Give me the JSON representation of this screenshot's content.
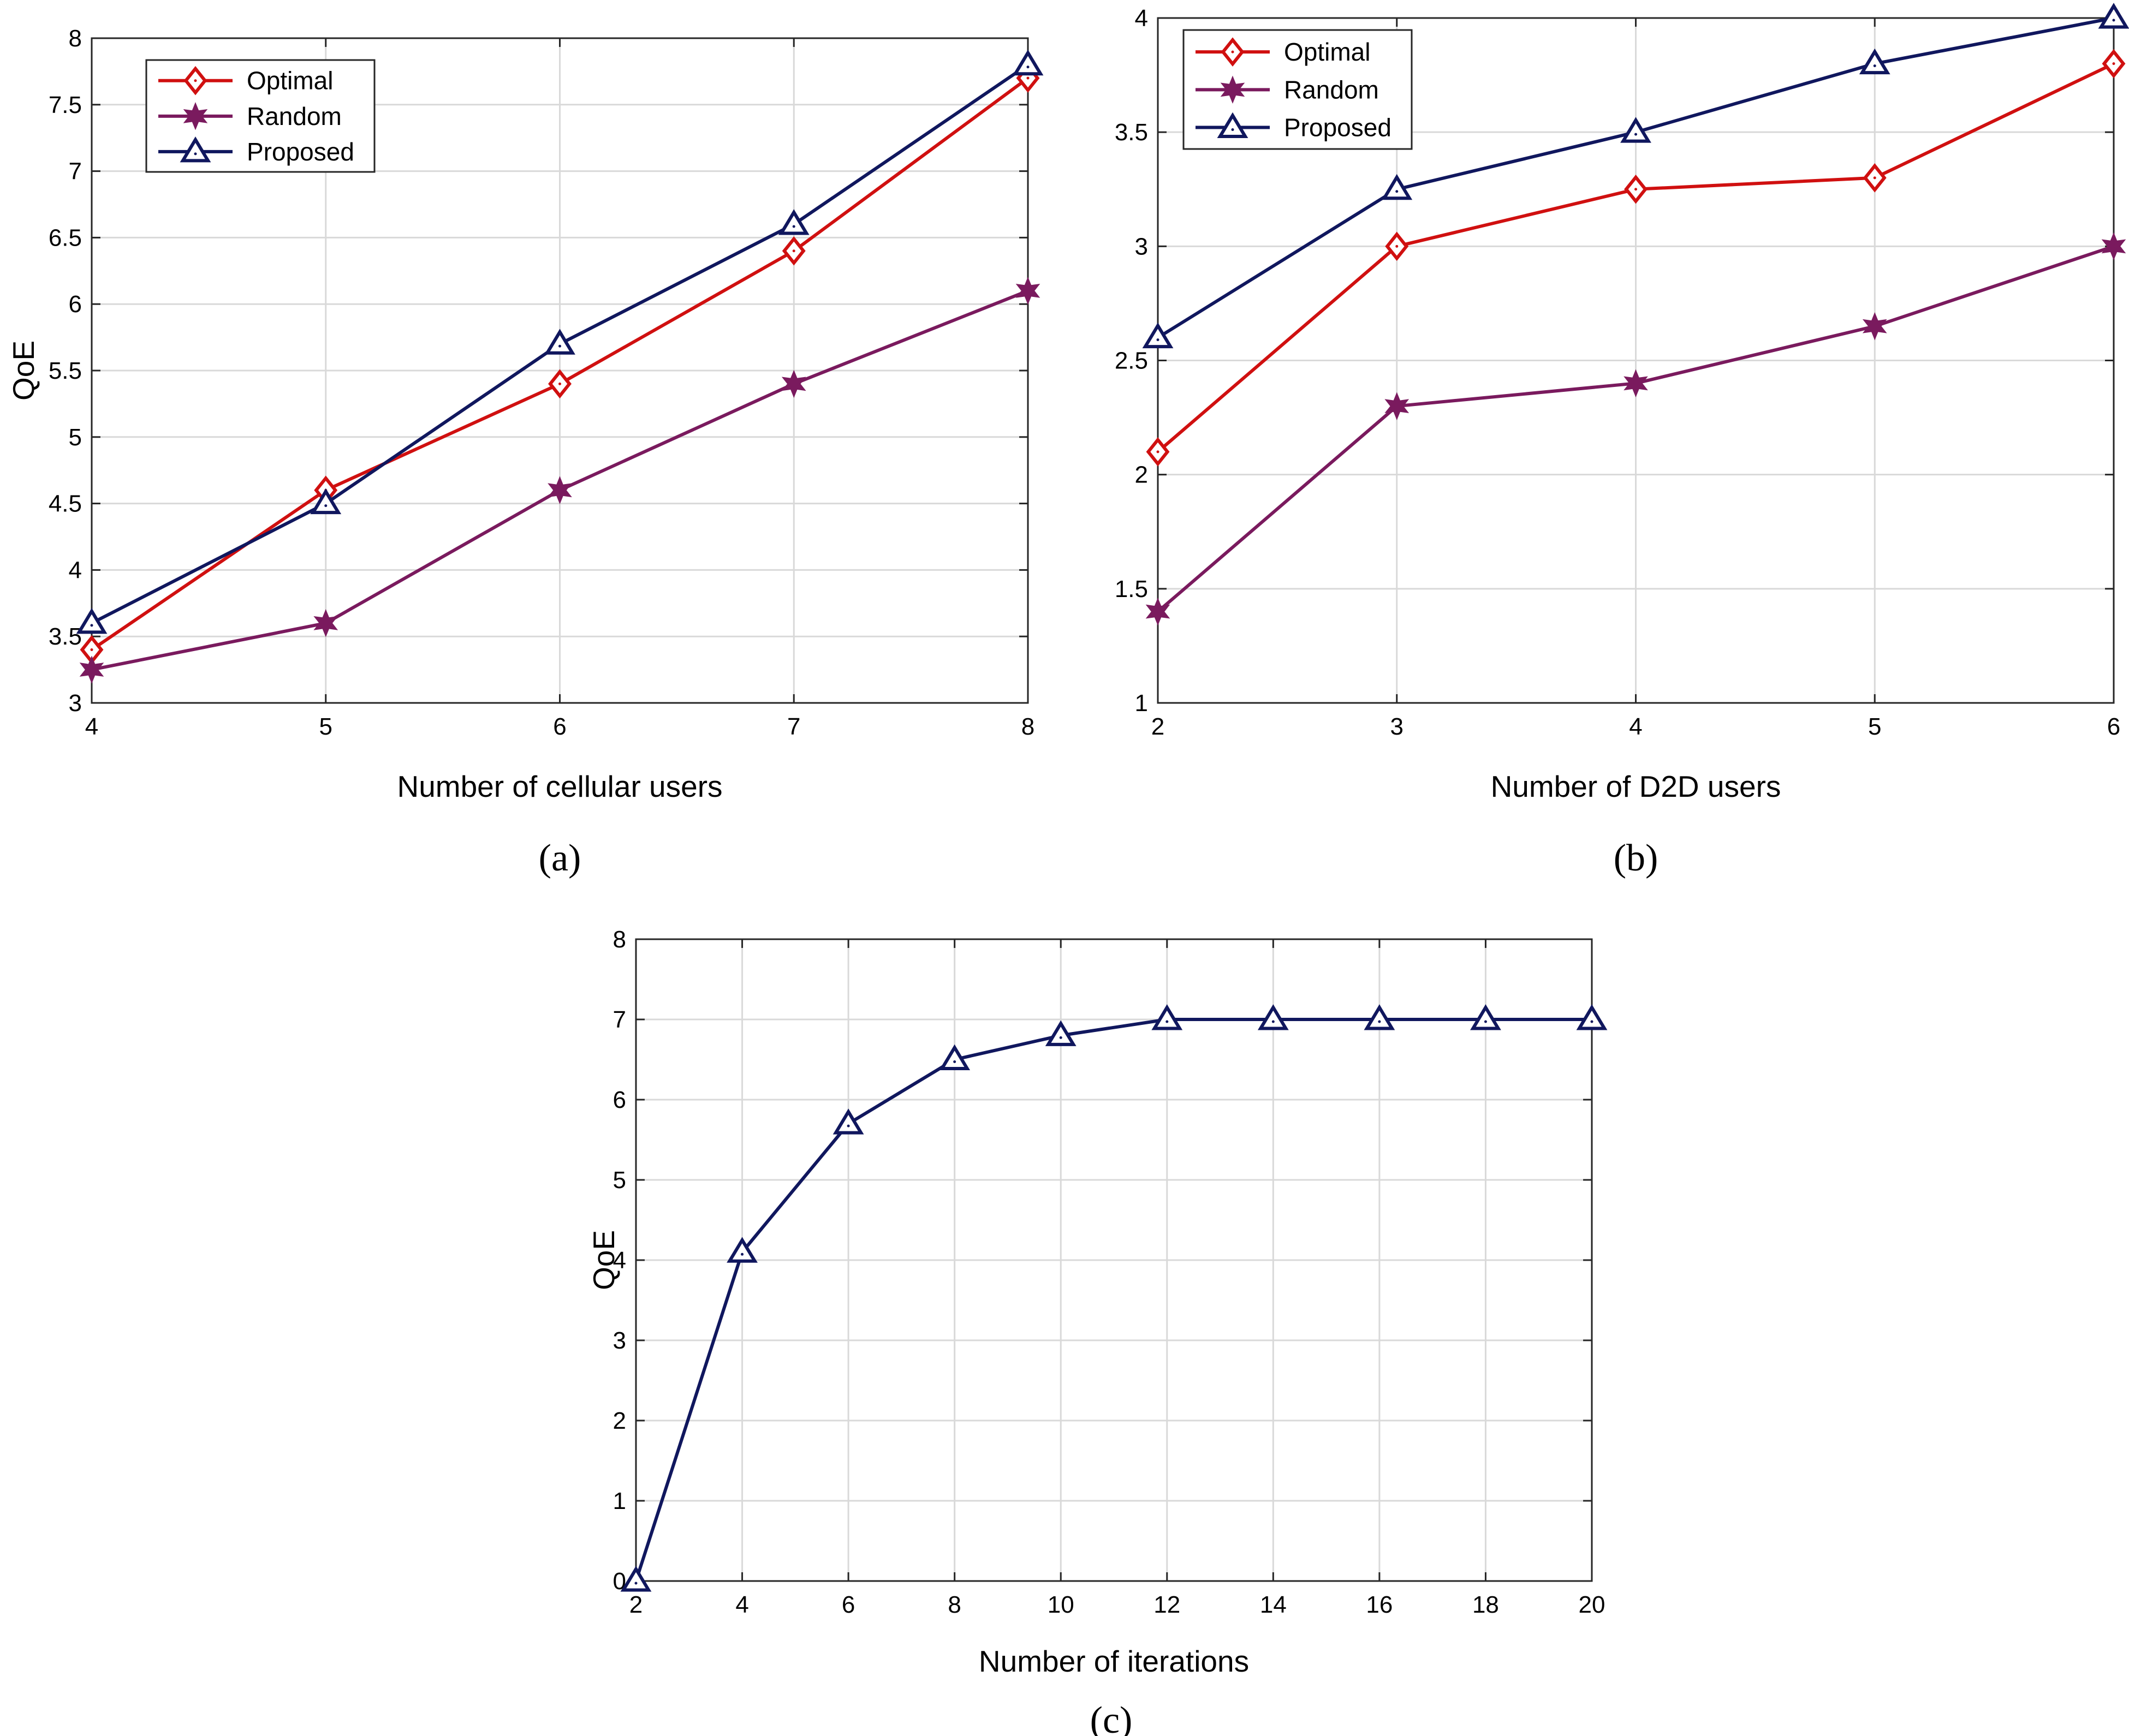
{
  "colors": {
    "optimal": "#d01010",
    "random": "#7a1a5e",
    "proposed": "#10175e"
  },
  "chart_data": [
    {
      "id": "a",
      "type": "line",
      "caption": "(a)",
      "xlabel": "Number of cellular users",
      "ylabel": "QoE",
      "xlim": [
        4,
        8
      ],
      "ylim": [
        3,
        8
      ],
      "xticks": [
        4,
        5,
        6,
        7,
        8
      ],
      "xtick_labels": [
        "4",
        "5",
        "6",
        "7",
        "8"
      ],
      "yticks": [
        3,
        3.5,
        4,
        4.5,
        5,
        5.5,
        6,
        6.5,
        7,
        7.5,
        8
      ],
      "ytick_labels": [
        "3",
        "3.5",
        "4",
        "4.5",
        "5",
        "5.5",
        "6",
        "6.5",
        "7",
        "7.5",
        "8"
      ],
      "grid": true,
      "legend_position": "top-left",
      "x": [
        4,
        5,
        6,
        7,
        8
      ],
      "series": [
        {
          "name": "Optimal",
          "color_key": "optimal",
          "marker": "diamond",
          "values": [
            3.4,
            4.6,
            5.4,
            6.4,
            7.7
          ]
        },
        {
          "name": "Random",
          "color_key": "random",
          "marker": "hexagram",
          "values": [
            3.25,
            3.6,
            4.6,
            5.4,
            6.1
          ]
        },
        {
          "name": "Proposed",
          "color_key": "proposed",
          "marker": "triangle",
          "values": [
            3.6,
            4.5,
            5.7,
            6.6,
            7.8
          ]
        }
      ]
    },
    {
      "id": "b",
      "type": "line",
      "caption": "(b)",
      "xlabel": "Number of D2D users",
      "ylabel": "",
      "xlim": [
        2,
        6
      ],
      "ylim": [
        1,
        4
      ],
      "xticks": [
        2,
        3,
        4,
        5,
        6
      ],
      "xtick_labels": [
        "2",
        "3",
        "4",
        "5",
        "6"
      ],
      "yticks": [
        1,
        1.5,
        2,
        2.5,
        3,
        3.5,
        4
      ],
      "ytick_labels": [
        "1",
        "1.5",
        "2",
        "2.5",
        "3",
        "3.5",
        "4"
      ],
      "grid": true,
      "legend_position": "top-left",
      "x": [
        2,
        3,
        4,
        5,
        6
      ],
      "series": [
        {
          "name": "Optimal",
          "color_key": "optimal",
          "marker": "diamond",
          "values": [
            2.1,
            3.0,
            3.25,
            3.3,
            3.8
          ]
        },
        {
          "name": "Random",
          "color_key": "random",
          "marker": "hexagram",
          "values": [
            1.4,
            2.3,
            2.4,
            2.65,
            3.0
          ]
        },
        {
          "name": "Proposed",
          "color_key": "proposed",
          "marker": "triangle",
          "values": [
            2.6,
            3.25,
            3.5,
            3.8,
            4.0
          ]
        }
      ]
    },
    {
      "id": "c",
      "type": "line",
      "caption": "(c)",
      "xlabel": "Number of iterations",
      "ylabel": "QoE",
      "xlim": [
        2,
        20
      ],
      "ylim": [
        0,
        8
      ],
      "xticks": [
        2,
        4,
        6,
        8,
        10,
        12,
        14,
        16,
        18,
        20
      ],
      "xtick_labels": [
        "2",
        "4",
        "6",
        "8",
        "10",
        "12",
        "14",
        "16",
        "18",
        "20"
      ],
      "yticks": [
        0,
        1,
        2,
        3,
        4,
        5,
        6,
        7,
        8
      ],
      "ytick_labels": [
        "0",
        "1",
        "2",
        "3",
        "4",
        "5",
        "6",
        "7",
        "8"
      ],
      "grid": true,
      "legend_position": "none",
      "x": [
        2,
        4,
        6,
        8,
        10,
        12,
        14,
        16,
        18,
        20
      ],
      "series": [
        {
          "name": "Proposed",
          "color_key": "proposed",
          "marker": "triangle",
          "values": [
            0,
            4.1,
            5.7,
            6.5,
            6.8,
            7.0,
            7.0,
            7.0,
            7.0,
            7.0
          ]
        }
      ]
    }
  ]
}
